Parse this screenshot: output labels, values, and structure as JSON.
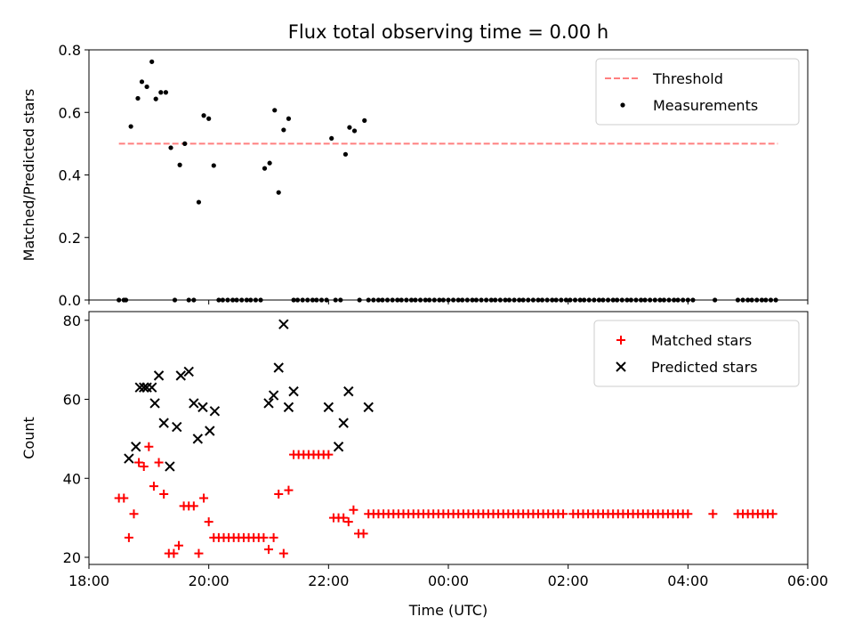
{
  "title": "Flux total observing time = 0.00 h",
  "chart_data": [
    {
      "type": "scatter",
      "title": "Flux total observing time = 0.00 h",
      "ylabel": "Matched/Predicted stars",
      "xlabel": "",
      "xlim": [
        "18:00",
        "06:00"
      ],
      "ylim": [
        0,
        0.8
      ],
      "y_ticks": [
        "0.0",
        "0.2",
        "0.4",
        "0.6",
        "0.8"
      ],
      "legend_position": "top-right",
      "grid": false,
      "threshold": {
        "name": "Threshold",
        "value": 0.5,
        "x_range": [
          "18:30",
          "05:30"
        ],
        "color": "#ff7f7f",
        "style": "dashed"
      },
      "series": [
        {
          "name": "Measurements",
          "color": "#000000",
          "marker": "dot",
          "x": [
            "18:30",
            "18:35",
            "18:37",
            "18:42",
            "18:49",
            "18:53",
            "18:58",
            "19:03",
            "19:07",
            "19:12",
            "19:17",
            "19:22",
            "19:26",
            "19:31",
            "19:36",
            "19:40",
            "19:45",
            "19:50",
            "19:55",
            "20:00",
            "20:05",
            "20:10",
            "20:14",
            "20:19",
            "20:24",
            "20:28",
            "20:33",
            "20:38",
            "20:42",
            "20:47",
            "20:52",
            "20:56",
            "21:01",
            "21:06",
            "21:10",
            "21:15",
            "21:20",
            "21:25",
            "21:29",
            "21:34",
            "21:39",
            "21:44",
            "21:48",
            "21:53",
            "21:58",
            "22:03",
            "22:07",
            "22:12",
            "22:17",
            "22:21",
            "22:26",
            "22:31",
            "22:36",
            "22:40",
            "22:45",
            "22:50",
            "22:54",
            "22:59",
            "23:04",
            "23:09",
            "23:13",
            "23:18",
            "23:23",
            "23:27",
            "23:32",
            "23:37",
            "23:41",
            "23:46",
            "23:51",
            "23:55",
            "00:00",
            "00:05",
            "00:10",
            "00:14",
            "00:19",
            "00:24",
            "00:28",
            "00:33",
            "00:38",
            "00:43",
            "00:47",
            "00:52",
            "00:57",
            "01:01",
            "01:06",
            "01:11",
            "01:15",
            "01:20",
            "01:25",
            "01:30",
            "01:34",
            "01:39",
            "01:44",
            "01:48",
            "01:53",
            "01:58",
            "02:02",
            "02:07",
            "02:12",
            "02:16",
            "02:21",
            "02:26",
            "02:31",
            "02:35",
            "02:40",
            "02:45",
            "02:49",
            "02:54",
            "02:59",
            "03:03",
            "03:08",
            "03:13",
            "03:17",
            "03:22",
            "03:27",
            "03:32",
            "03:36",
            "03:41",
            "03:46",
            "03:50",
            "03:55",
            "04:00",
            "04:05",
            "04:27",
            "04:50",
            "04:55",
            "05:00",
            "05:04",
            "05:09",
            "05:14",
            "05:18",
            "05:23",
            "05:28"
          ],
          "y": [
            0,
            0,
            0,
            0.555,
            0.645,
            0.698,
            0.682,
            0.762,
            0.643,
            0.664,
            0.664,
            0.487,
            0,
            0.432,
            0.5,
            0,
            0,
            0.313,
            0.59,
            0.58,
            0.43,
            0,
            0,
            0,
            0,
            0,
            0,
            0,
            0,
            0,
            0,
            0.421,
            0.438,
            0.607,
            0.344,
            0.544,
            0.58,
            0,
            0,
            0,
            0,
            0,
            0,
            0,
            0,
            0.517,
            0,
            0,
            0.466,
            0.552,
            0.541,
            0,
            0.574,
            0,
            0,
            0,
            0,
            0,
            0,
            0,
            0,
            0,
            0,
            0,
            0,
            0,
            0,
            0,
            0,
            0,
            0,
            0,
            0,
            0,
            0,
            0,
            0,
            0,
            0,
            0,
            0,
            0,
            0,
            0,
            0,
            0,
            0,
            0,
            0,
            0,
            0,
            0,
            0,
            0,
            0,
            0,
            0,
            0,
            0,
            0,
            0,
            0,
            0,
            0,
            0,
            0,
            0,
            0,
            0,
            0,
            0,
            0,
            0,
            0,
            0,
            0,
            0,
            0,
            0,
            0,
            0,
            0,
            0,
            0,
            0,
            0,
            0,
            0,
            0,
            0,
            0,
            0,
            0
          ]
        }
      ]
    },
    {
      "type": "scatter",
      "title": "",
      "ylabel": "Count",
      "xlabel": "Time (UTC)",
      "xlim": [
        "18:00",
        "06:00"
      ],
      "ylim": [
        18.2,
        82.2
      ],
      "x_ticks": [
        "18:00",
        "20:00",
        "22:00",
        "00:00",
        "02:00",
        "04:00",
        "06:00"
      ],
      "y_ticks": [
        "20",
        "40",
        "60",
        "80"
      ],
      "legend_position": "top-right",
      "grid": false,
      "series": [
        {
          "name": "Matched stars",
          "color": "#ff0000",
          "marker": "plus",
          "x": [
            "18:30",
            "18:35",
            "18:40",
            "18:45",
            "18:50",
            "18:55",
            "19:00",
            "19:05",
            "19:10",
            "19:15",
            "19:20",
            "19:25",
            "19:30",
            "19:35",
            "19:40",
            "19:45",
            "19:50",
            "19:55",
            "20:00",
            "20:05",
            "20:10",
            "20:15",
            "20:20",
            "20:25",
            "20:30",
            "20:35",
            "20:40",
            "20:45",
            "20:50",
            "20:55",
            "21:00",
            "21:05",
            "21:10",
            "21:15",
            "21:20",
            "21:25",
            "21:30",
            "21:35",
            "21:40",
            "21:45",
            "21:50",
            "21:55",
            "22:00",
            "22:05",
            "22:10",
            "22:15",
            "22:20",
            "22:25",
            "22:30",
            "22:35",
            "22:40",
            "22:45",
            "22:50",
            "22:55",
            "23:00",
            "23:05",
            "23:10",
            "23:15",
            "23:20",
            "23:25",
            "23:30",
            "23:35",
            "23:40",
            "23:45",
            "23:50",
            "23:55",
            "00:00",
            "00:05",
            "00:10",
            "00:15",
            "00:20",
            "00:25",
            "00:30",
            "00:35",
            "00:40",
            "00:45",
            "00:50",
            "00:55",
            "01:00",
            "01:05",
            "01:10",
            "01:15",
            "01:20",
            "01:25",
            "01:30",
            "01:35",
            "01:40",
            "01:45",
            "01:50",
            "01:55",
            "02:05",
            "02:10",
            "02:15",
            "02:20",
            "02:25",
            "02:30",
            "02:35",
            "02:40",
            "02:45",
            "02:50",
            "02:55",
            "03:00",
            "03:05",
            "03:10",
            "03:15",
            "03:20",
            "03:25",
            "03:30",
            "03:35",
            "03:40",
            "03:45",
            "03:50",
            "03:55",
            "04:00",
            "04:25",
            "04:50",
            "04:55",
            "05:00",
            "05:05",
            "05:10",
            "05:15",
            "05:20",
            "05:25"
          ],
          "y": [
            35,
            35,
            25,
            31,
            44,
            43,
            48,
            38,
            44,
            36,
            21,
            21,
            23,
            33,
            33,
            33,
            21,
            35,
            29,
            25,
            25,
            25,
            25,
            25,
            25,
            25,
            25,
            25,
            25,
            25,
            22,
            25,
            36,
            21,
            37,
            46,
            46,
            46,
            46,
            46,
            46,
            46,
            46,
            30,
            30,
            30,
            29,
            32,
            26,
            26,
            31,
            31,
            31,
            31,
            31,
            31,
            31,
            31,
            31,
            31,
            31,
            31,
            31,
            31,
            31,
            31,
            31,
            31,
            31,
            31,
            31,
            31,
            31,
            31,
            31,
            31,
            31,
            31,
            31,
            31,
            31,
            31,
            31,
            31,
            31,
            31,
            31,
            31,
            31,
            31,
            31,
            31,
            31,
            31,
            31,
            31,
            31,
            31,
            31,
            31,
            31,
            31,
            31,
            31,
            31,
            31,
            31,
            31,
            31,
            31,
            31,
            31,
            31,
            31,
            31,
            31,
            31,
            31,
            31,
            31,
            31,
            31,
            31
          ]
        },
        {
          "name": "Predicted stars",
          "color": "#000000",
          "marker": "x",
          "x": [
            "18:40",
            "18:47",
            "18:51",
            "18:55",
            "18:58",
            "19:03",
            "19:06",
            "19:10",
            "19:15",
            "19:21",
            "19:28",
            "19:32",
            "19:40",
            "19:45",
            "19:49",
            "19:54",
            "20:01",
            "20:06",
            "21:00",
            "21:05",
            "21:10",
            "21:15",
            "21:20",
            "21:25",
            "22:00",
            "22:10",
            "22:15",
            "22:20",
            "22:40"
          ],
          "y": [
            45,
            48,
            63,
            63,
            63,
            63,
            59,
            66,
            54,
            43,
            53,
            66,
            67,
            59,
            50,
            58,
            52,
            57,
            59,
            61,
            68,
            79,
            58,
            62,
            58,
            48,
            54,
            62,
            58
          ]
        }
      ]
    }
  ]
}
